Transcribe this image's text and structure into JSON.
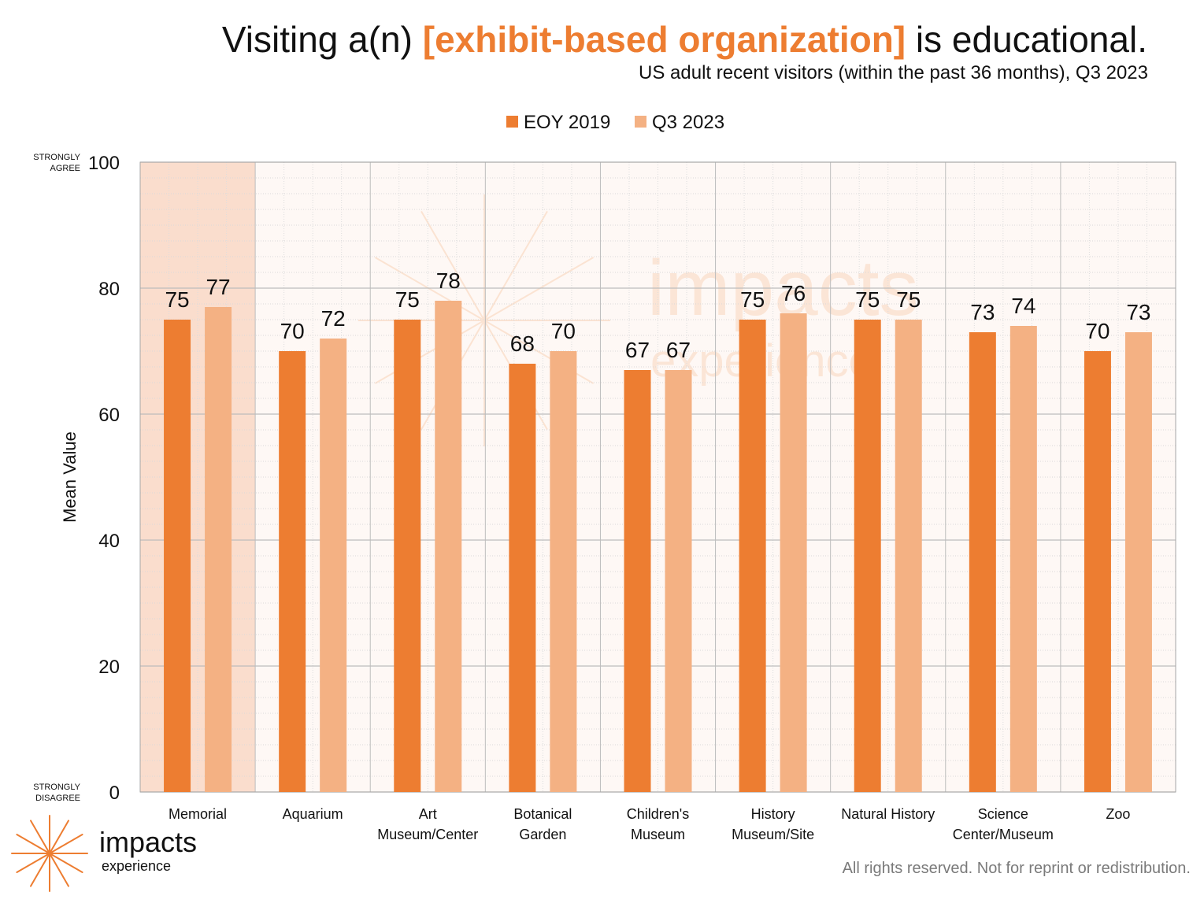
{
  "header": {
    "title_prefix": "Visiting a(n) ",
    "title_highlight": "[exhibit-based organization]",
    "title_suffix": " is educational.",
    "subtitle": "US adult recent visitors (within the past 36 months), Q3 2023"
  },
  "footer": {
    "rights": "All rights reserved. Not for reprint or redistribution."
  },
  "brand": {
    "name": "impacts",
    "subname": "experience",
    "watermark_name": "impacts",
    "watermark_subname": "experience"
  },
  "colors": {
    "eoy2019": "#ED7D31",
    "q32023": "#F4B183",
    "highlight_band": "#FADDCD",
    "plot_bg": "#FEF8F5",
    "accent": "#ED7D31"
  },
  "chart_data": {
    "type": "bar",
    "categories": [
      [
        "Memorial"
      ],
      [
        "Aquarium"
      ],
      [
        "Art",
        "Museum/Center"
      ],
      [
        "Botanical",
        "Garden"
      ],
      [
        "Children's",
        "Museum"
      ],
      [
        "History",
        "Museum/Site"
      ],
      [
        "Natural History"
      ],
      [
        "Science",
        "Center/Museum"
      ],
      [
        "Zoo"
      ]
    ],
    "series": [
      {
        "name": "EOY 2019",
        "values": [
          75,
          70,
          75,
          68,
          67,
          75,
          75,
          73,
          70
        ]
      },
      {
        "name": "Q3 2023",
        "values": [
          77,
          72,
          78,
          70,
          67,
          76,
          75,
          74,
          73
        ]
      }
    ],
    "ylabel": "Mean Value",
    "ylim": [
      0,
      100
    ],
    "yticks": [
      0,
      20,
      40,
      60,
      80,
      100
    ],
    "ytick_top_note": [
      "STRONGLY",
      "AGREE"
    ],
    "ytick_bottom_note": [
      "STRONGLY",
      "DISAGREE"
    ],
    "highlighted_category": "Memorial",
    "grid": true,
    "legend_position": "top-center",
    "data_labels": true
  }
}
